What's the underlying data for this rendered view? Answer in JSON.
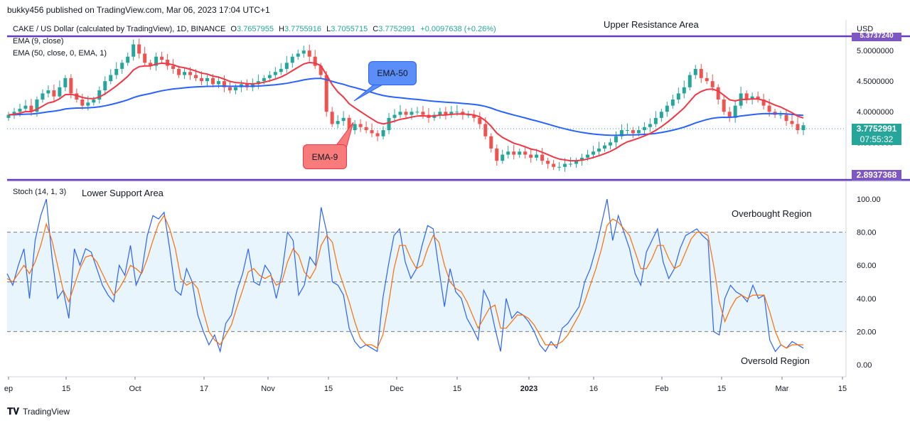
{
  "header": {
    "publish": "bukky456 published on TradingView.com, Mar 06, 2023 17:04 UTC+1",
    "symbol": "CAKE / US Dollar (calculated by TradingView), 1D, BINANCE",
    "o_lbl": "O",
    "o_val": "3.7657955",
    "h_lbl": "H",
    "h_val": "3.7755916",
    "l_lbl": "L",
    "l_val": "3.7055715",
    "c_lbl": "C",
    "c_val": "3.7752991",
    "change": "+0.0097638 (+0.26%)",
    "ema9": "EMA (9, close)",
    "ema50": "EMA (50, close, 0, EMA, 1)",
    "currency": "USD"
  },
  "annotations": {
    "upper": "Upper Resistance Area",
    "lower": "Lower Support Area",
    "overbought": "Overbought Region",
    "oversold": "Oversold Region",
    "ema50_bubble": "EMA-50",
    "ema9_bubble": "EMA-9"
  },
  "price_tags": {
    "current": "3.7752991",
    "countdown": "07:55:32",
    "support": "2.8937368"
  },
  "colors": {
    "up": "#26a69a",
    "down": "#ef5350",
    "ema9": "#f23645",
    "ema50": "#2962ff",
    "zone_line": "#673ab7",
    "stoch_k": "#2962ff",
    "stoch_d": "#ff6d00",
    "band_fill": "#e3f2fd",
    "bubble_blue": "#5b8ef7",
    "bubble_red": "#f77b7b"
  },
  "chart_data": [
    {
      "type": "candlestick",
      "pane": "price",
      "ylabel": "USD",
      "ylim": [
        2.9,
        5.5
      ],
      "yticks": [
        "5.0000000",
        "4.5000000",
        "4.0000000"
      ],
      "xticks": [
        "ep",
        "15",
        "Oct",
        "17",
        "Nov",
        "15",
        "Dec",
        "15",
        "2023",
        "16",
        "Feb",
        "15",
        "Mar",
        "15"
      ],
      "levels": [
        {
          "name": "Upper Resistance Area",
          "value": 5.4
        },
        {
          "name": "Lower Support Area",
          "value": 2.8937368
        }
      ],
      "close_series": [
        3.95,
        4.0,
        4.05,
        4.1,
        4.0,
        4.2,
        4.3,
        4.35,
        4.25,
        4.4,
        4.55,
        4.3,
        4.2,
        4.1,
        4.15,
        4.2,
        4.35,
        4.5,
        4.6,
        4.7,
        4.8,
        4.9,
        5.1,
        4.95,
        4.8,
        4.75,
        4.9,
        4.85,
        4.75,
        4.7,
        4.6,
        4.65,
        4.6,
        4.55,
        4.5,
        4.55,
        4.45,
        4.5,
        4.4,
        4.35,
        4.4,
        4.45,
        4.4,
        4.45,
        4.5,
        4.55,
        4.6,
        4.65,
        4.7,
        4.8,
        4.9,
        4.95,
        5.0,
        4.9,
        4.75,
        4.6,
        4.0,
        3.8,
        3.85,
        3.9,
        3.7,
        3.8,
        3.75,
        3.7,
        3.65,
        3.6,
        3.7,
        3.9,
        3.95,
        4.0,
        3.95,
        4.0,
        4.0,
        3.95,
        3.9,
        3.95,
        4.0,
        3.95,
        4.0,
        4.0,
        3.95,
        3.95,
        3.9,
        3.8,
        3.6,
        3.4,
        3.2,
        3.3,
        3.35,
        3.3,
        3.35,
        3.3,
        3.25,
        3.3,
        3.2,
        3.15,
        3.1,
        3.1,
        3.15,
        3.15,
        3.2,
        3.25,
        3.3,
        3.35,
        3.4,
        3.45,
        3.5,
        3.6,
        3.7,
        3.7,
        3.65,
        3.7,
        3.75,
        3.8,
        3.9,
        4.0,
        4.1,
        4.2,
        4.3,
        4.4,
        4.6,
        4.7,
        4.55,
        4.5,
        4.4,
        4.2,
        4.0,
        3.9,
        4.1,
        4.3,
        4.2,
        4.25,
        4.2,
        4.1,
        4.0,
        3.95,
        3.95,
        3.85,
        3.8,
        3.7,
        3.78
      ],
      "ema9_last": 3.85,
      "ema50_last": 3.98,
      "last": {
        "open": 3.7657955,
        "high": 3.7755916,
        "low": 3.7055715,
        "close": 3.7752991,
        "change": 0.0097638,
        "change_pct": 0.26
      }
    },
    {
      "type": "line",
      "pane": "stochastic",
      "title": "Stoch (14, 1, 3)",
      "ylim": [
        0,
        100
      ],
      "yticks": [
        "100.00",
        "80.00",
        "60.00",
        "40.00",
        "20.00",
        "0.00"
      ],
      "bands": [
        20,
        50,
        80
      ],
      "series": [
        {
          "name": "%K",
          "values": [
            55,
            48,
            60,
            70,
            40,
            75,
            90,
            100,
            65,
            40,
            45,
            28,
            70,
            60,
            70,
            68,
            58,
            48,
            42,
            38,
            60,
            54,
            72,
            48,
            56,
            78,
            90,
            88,
            92,
            70,
            45,
            42,
            58,
            50,
            30,
            20,
            12,
            18,
            8,
            25,
            30,
            45,
            55,
            70,
            50,
            48,
            60,
            55,
            40,
            55,
            80,
            75,
            42,
            48,
            65,
            60,
            95,
            80,
            50,
            48,
            42,
            22,
            14,
            10,
            12,
            10,
            8,
            40,
            60,
            78,
            82,
            62,
            52,
            58,
            72,
            84,
            82,
            58,
            35,
            58,
            44,
            40,
            28,
            22,
            15,
            45,
            38,
            22,
            8,
            40,
            28,
            32,
            30,
            26,
            20,
            12,
            8,
            14,
            10,
            22,
            25,
            30,
            35,
            50,
            58,
            70,
            85,
            100,
            75,
            90,
            80,
            70,
            55,
            48,
            68,
            75,
            82,
            62,
            52,
            58,
            70,
            78,
            80,
            82,
            78,
            75,
            20,
            18,
            40,
            48,
            44,
            42,
            38,
            48,
            40,
            42,
            15,
            8,
            12,
            10,
            14,
            12,
            10
          ]
        },
        {
          "name": "%D",
          "values": [
            52,
            50,
            55,
            60,
            55,
            62,
            72,
            85,
            75,
            60,
            45,
            38,
            48,
            58,
            65,
            66,
            62,
            55,
            48,
            42,
            46,
            52,
            60,
            58,
            55,
            64,
            75,
            85,
            90,
            82,
            70,
            52,
            48,
            50,
            46,
            32,
            20,
            15,
            12,
            18,
            24,
            35,
            45,
            56,
            58,
            54,
            52,
            54,
            48,
            50,
            62,
            70,
            66,
            56,
            52,
            58,
            72,
            78,
            74,
            58,
            48,
            38,
            26,
            16,
            12,
            12,
            10,
            18,
            36,
            58,
            72,
            72,
            64,
            58,
            60,
            70,
            78,
            74,
            60,
            50,
            46,
            44,
            38,
            30,
            22,
            28,
            34,
            36,
            22,
            22,
            26,
            30,
            30,
            28,
            24,
            18,
            12,
            12,
            12,
            14,
            18,
            24,
            30,
            38,
            48,
            58,
            70,
            84,
            88,
            86,
            82,
            78,
            68,
            58,
            58,
            64,
            72,
            72,
            64,
            58,
            60,
            68,
            76,
            80,
            80,
            78,
            60,
            38,
            26,
            34,
            40,
            42,
            40,
            42,
            42,
            42,
            32,
            20,
            12,
            10,
            12,
            12,
            12
          ]
        }
      ],
      "levels": [
        {
          "name": "Overbought Region",
          "value": 80
        },
        {
          "name": "Oversold Region",
          "value": 20
        }
      ]
    }
  ]
}
